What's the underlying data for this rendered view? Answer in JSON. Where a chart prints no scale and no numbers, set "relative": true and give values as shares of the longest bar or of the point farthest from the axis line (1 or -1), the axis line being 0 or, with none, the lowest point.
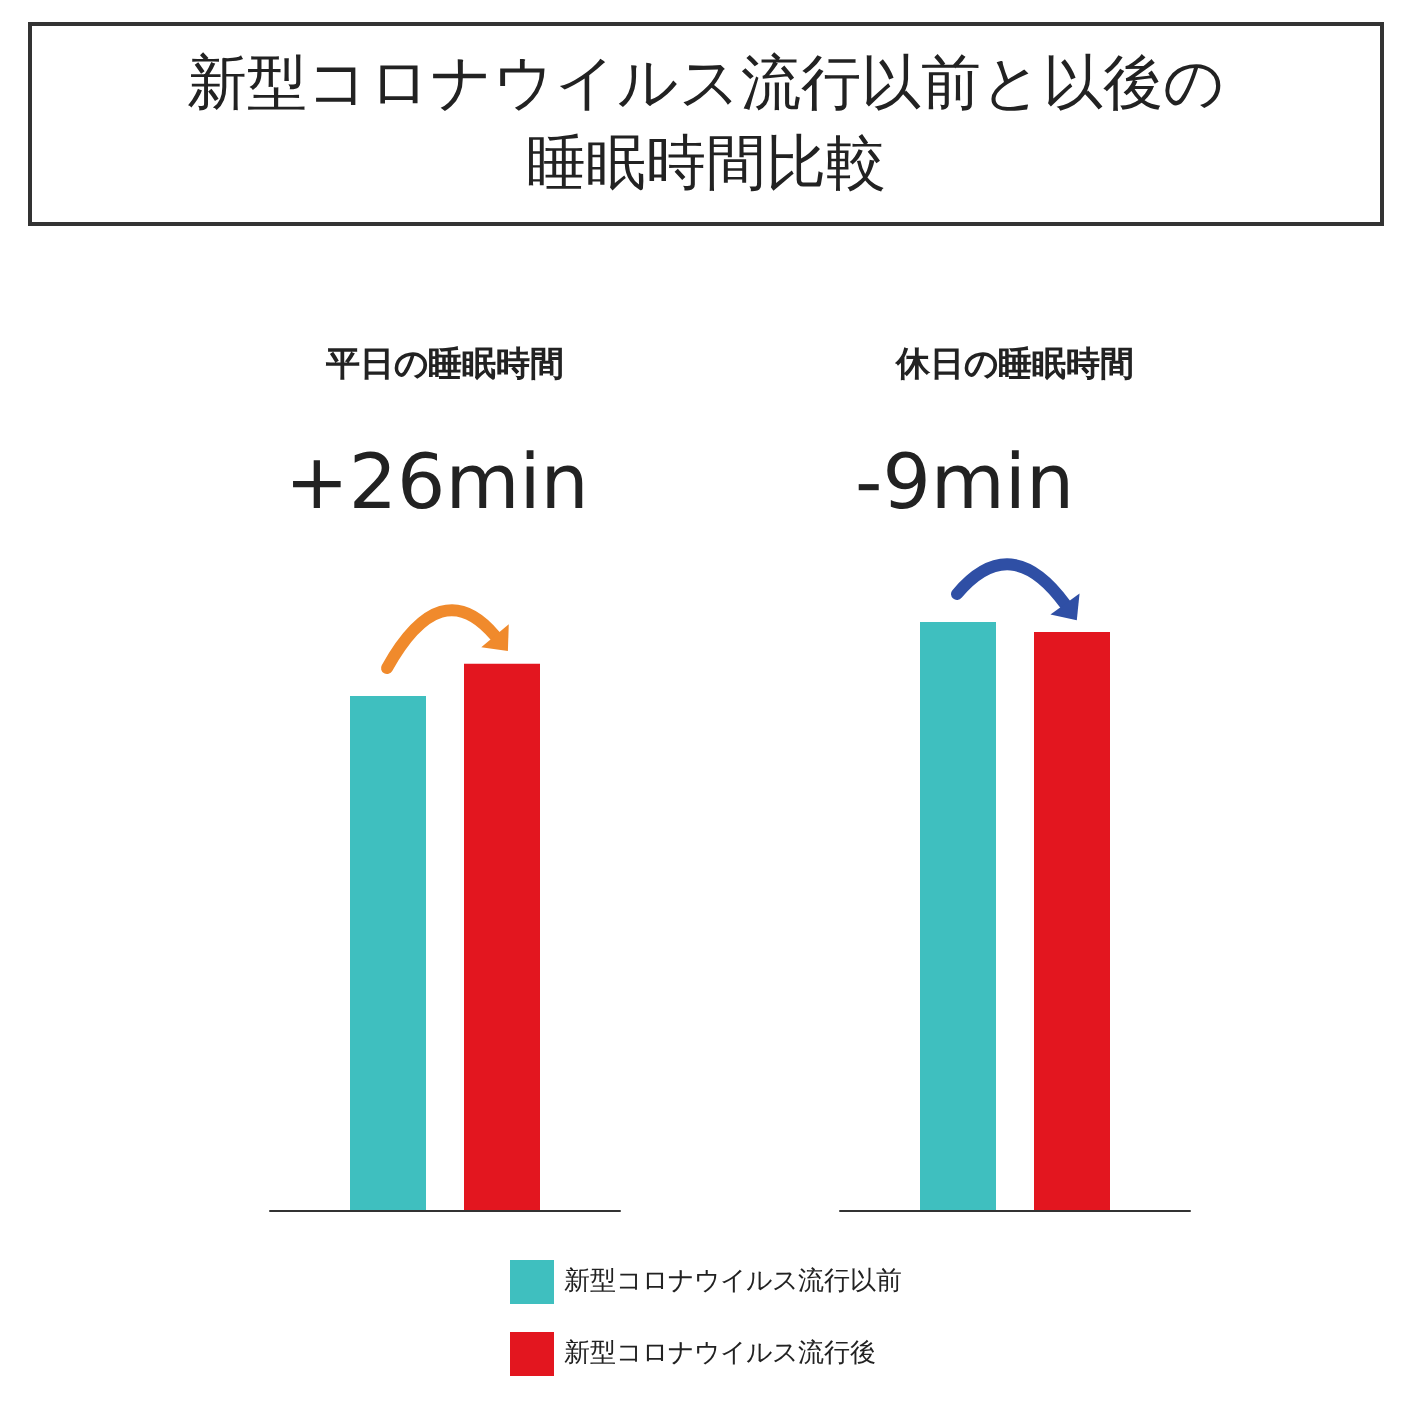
{
  "chart_data": {
    "type": "bar",
    "title": "新型コロナウイルス流行以前と以後の睡眠時間比較",
    "relative": true,
    "categories": [
      "平日の睡眠時間",
      "休日の睡眠時間"
    ],
    "series": [
      {
        "name": "新型コロナウイルス流行以前",
        "color": "#3fbfbf",
        "values": [
          0.874,
          1
        ]
      },
      {
        "name": "新型コロナウイルス流行後",
        "color": "#e3161f",
        "values": [
          0.929,
          0.983
        ]
      }
    ],
    "annotations": [
      "+26min",
      "-9min"
    ],
    "legend": "bottom",
    "grid": false
  }
}
